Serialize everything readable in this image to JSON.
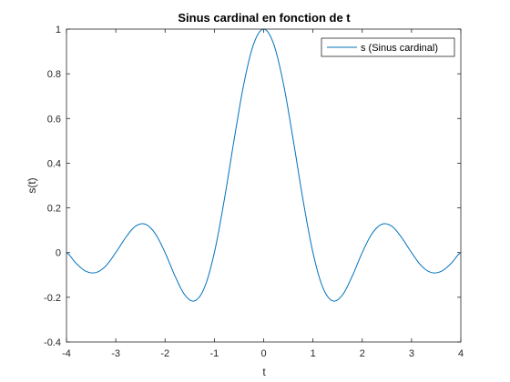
{
  "chart_data": {
    "type": "line",
    "title": "Sinus cardinal en fonction de t",
    "xlabel": "t",
    "ylabel": "s(t)",
    "xlim": [
      -4,
      4
    ],
    "ylim": [
      -0.4,
      1
    ],
    "xticks": [
      "-4",
      "-3",
      "-2",
      "-1",
      "0",
      "1",
      "2",
      "3",
      "4"
    ],
    "yticks": [
      "-0.4",
      "-0.2",
      "0",
      "0.2",
      "0.4",
      "0.6",
      "0.8",
      "1"
    ],
    "grid": false,
    "legend_position": "top-right",
    "series": [
      {
        "name": "s (Sinus cardinal)",
        "color": "#0072BD",
        "x": [
          -4,
          -3.8,
          -3.6,
          -3.4,
          -3.2,
          -3,
          -2.8,
          -2.6,
          -2.4,
          -2.2,
          -2,
          -1.8,
          -1.6,
          -1.4,
          -1.2,
          -1,
          -0.8,
          -0.6,
          -0.4,
          -0.2,
          0,
          0.2,
          0.4,
          0.6,
          0.8,
          1,
          1.2,
          1.4,
          1.6,
          1.8,
          2,
          2.2,
          2.4,
          2.6,
          2.8,
          3,
          3.2,
          3.4,
          3.6,
          3.8,
          4
        ],
        "y": [
          0,
          -0.049,
          -0.084,
          -0.089,
          -0.059,
          0,
          0.067,
          0.118,
          0.127,
          0.085,
          0,
          -0.104,
          -0.189,
          -0.216,
          -0.156,
          0,
          0.234,
          0.504,
          0.757,
          0.935,
          1,
          0.935,
          0.757,
          0.504,
          0.234,
          0,
          -0.156,
          -0.216,
          -0.189,
          -0.104,
          0,
          0.085,
          0.127,
          0.118,
          0.067,
          0,
          -0.059,
          -0.089,
          -0.084,
          -0.049,
          0
        ]
      }
    ]
  }
}
